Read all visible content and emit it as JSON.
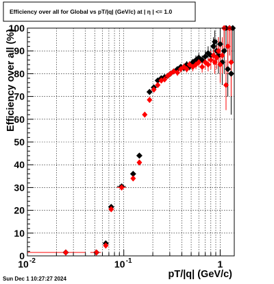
{
  "chart_data": {
    "type": "scatter",
    "title": "Efficiency over all for Global vs pT/|q| (GeV/c) at |  η  | <= 1.0",
    "xlabel": "pT/|q| (GeV/c)",
    "ylabel": "Efficiency over all (%)",
    "x_scale": "log",
    "xlim": [
      0.01,
      1.4
    ],
    "ylim": [
      0,
      100
    ],
    "x_major_ticks": [
      0.01,
      0.1,
      1
    ],
    "x_major_tick_labels": [
      "10",
      "10",
      "1"
    ],
    "x_major_tick_exponents": [
      "-2",
      "-1",
      ""
    ],
    "y_ticks": [
      0,
      10,
      20,
      30,
      40,
      50,
      60,
      70,
      80,
      90,
      100
    ],
    "y_tick_labels": [
      "0",
      "10",
      "20",
      "30",
      "40",
      "50",
      "60",
      "70",
      "80",
      "90",
      "100"
    ],
    "grid": true,
    "timestamp": "Sun Dec  1 10:27:27 2024",
    "series": [
      {
        "color": "#000000",
        "marker": "diamond",
        "points": [
          {
            "x": 0.025,
            "y": 1.5,
            "xlo": 0.01,
            "xhi": 0.04,
            "ylo": 1.5,
            "yhi": 1.5
          },
          {
            "x": 0.052,
            "y": 1.5,
            "xlo": 0.045,
            "xhi": 0.058,
            "ylo": 1.5,
            "yhi": 1.5
          },
          {
            "x": 0.065,
            "y": 5.5,
            "xlo": 0.062,
            "xhi": 0.068,
            "ylo": 4.5,
            "yhi": 6.5
          },
          {
            "x": 0.074,
            "y": 21.5,
            "xlo": 0.071,
            "xhi": 0.077,
            "ylo": 20.5,
            "yhi": 22.5
          },
          {
            "x": 0.095,
            "y": 30.5,
            "xlo": 0.085,
            "xhi": 0.105,
            "ylo": 29.5,
            "yhi": 31.5
          },
          {
            "x": 0.125,
            "y": 36,
            "xlo": 0.118,
            "xhi": 0.132,
            "ylo": 35,
            "yhi": 37
          },
          {
            "x": 0.145,
            "y": 44,
            "xlo": 0.141,
            "xhi": 0.149,
            "ylo": 43,
            "yhi": 45
          },
          {
            "x": 0.185,
            "y": 72,
            "xlo": 0.18,
            "xhi": 0.19,
            "ylo": 71,
            "yhi": 73
          },
          {
            "x": 0.205,
            "y": 74,
            "xlo": 0.2,
            "xhi": 0.21,
            "ylo": 73,
            "yhi": 75
          },
          {
            "x": 0.225,
            "y": 77,
            "xlo": 0.22,
            "xhi": 0.23,
            "ylo": 76,
            "yhi": 78
          },
          {
            "x": 0.245,
            "y": 78,
            "xlo": 0.24,
            "xhi": 0.25,
            "ylo": 77,
            "yhi": 79
          },
          {
            "x": 0.265,
            "y": 78.5,
            "xlo": 0.26,
            "xhi": 0.27,
            "ylo": 77.5,
            "yhi": 79.5
          },
          {
            "x": 0.285,
            "y": 79,
            "xlo": 0.28,
            "xhi": 0.29,
            "ylo": 78,
            "yhi": 80
          },
          {
            "x": 0.305,
            "y": 80,
            "xlo": 0.3,
            "xhi": 0.31,
            "ylo": 79,
            "yhi": 81
          },
          {
            "x": 0.33,
            "y": 81,
            "xlo": 0.32,
            "xhi": 0.34,
            "ylo": 80,
            "yhi": 82
          },
          {
            "x": 0.36,
            "y": 82,
            "xlo": 0.35,
            "xhi": 0.37,
            "ylo": 81,
            "yhi": 83
          },
          {
            "x": 0.39,
            "y": 83,
            "xlo": 0.38,
            "xhi": 0.4,
            "ylo": 82,
            "yhi": 84
          },
          {
            "x": 0.42,
            "y": 82.5,
            "xlo": 0.41,
            "xhi": 0.43,
            "ylo": 81,
            "yhi": 84
          },
          {
            "x": 0.45,
            "y": 84,
            "xlo": 0.44,
            "xhi": 0.46,
            "ylo": 82.5,
            "yhi": 85.5
          },
          {
            "x": 0.48,
            "y": 83,
            "xlo": 0.47,
            "xhi": 0.49,
            "ylo": 81.5,
            "yhi": 84.5
          },
          {
            "x": 0.52,
            "y": 85,
            "xlo": 0.5,
            "xhi": 0.54,
            "ylo": 83.5,
            "yhi": 86.5
          },
          {
            "x": 0.56,
            "y": 86,
            "xlo": 0.54,
            "xhi": 0.58,
            "ylo": 84,
            "yhi": 88
          },
          {
            "x": 0.6,
            "y": 87,
            "xlo": 0.58,
            "xhi": 0.62,
            "ylo": 85,
            "yhi": 89
          },
          {
            "x": 0.65,
            "y": 86,
            "xlo": 0.63,
            "xhi": 0.67,
            "ylo": 84,
            "yhi": 88
          },
          {
            "x": 0.7,
            "y": 87.5,
            "xlo": 0.68,
            "xhi": 0.72,
            "ylo": 85,
            "yhi": 90
          },
          {
            "x": 0.75,
            "y": 89,
            "xlo": 0.73,
            "xhi": 0.77,
            "ylo": 86,
            "yhi": 92
          },
          {
            "x": 0.8,
            "y": 88,
            "xlo": 0.78,
            "xhi": 0.82,
            "ylo": 85,
            "yhi": 91
          },
          {
            "x": 0.85,
            "y": 92,
            "xlo": 0.83,
            "xhi": 0.87,
            "ylo": 88,
            "yhi": 96
          },
          {
            "x": 0.88,
            "y": 94,
            "xlo": 0.87,
            "xhi": 0.89,
            "ylo": 89,
            "yhi": 99
          },
          {
            "x": 0.92,
            "y": 90,
            "xlo": 0.9,
            "xhi": 0.94,
            "ylo": 85,
            "yhi": 95
          },
          {
            "x": 0.96,
            "y": 88,
            "xlo": 0.94,
            "xhi": 0.98,
            "ylo": 80,
            "yhi": 96
          },
          {
            "x": 1.0,
            "y": 93,
            "xlo": 0.98,
            "xhi": 1.02,
            "ylo": 85,
            "yhi": 100
          },
          {
            "x": 1.05,
            "y": 85,
            "xlo": 1.03,
            "xhi": 1.07,
            "ylo": 75,
            "yhi": 95
          },
          {
            "x": 1.1,
            "y": 90,
            "xlo": 1.08,
            "xhi": 1.12,
            "ylo": 80,
            "yhi": 100
          },
          {
            "x": 1.15,
            "y": 100,
            "xlo": 1.13,
            "xhi": 1.17,
            "ylo": 90,
            "yhi": 100
          },
          {
            "x": 1.2,
            "y": 82,
            "xlo": 1.18,
            "xhi": 1.22,
            "ylo": 70,
            "yhi": 94
          },
          {
            "x": 1.25,
            "y": 100,
            "xlo": 1.23,
            "xhi": 1.27,
            "ylo": 88,
            "yhi": 100
          },
          {
            "x": 1.3,
            "y": 80,
            "xlo": 1.28,
            "xhi": 1.32,
            "ylo": 62,
            "yhi": 98
          },
          {
            "x": 1.35,
            "y": 100,
            "xlo": 1.33,
            "xhi": 1.37,
            "ylo": 85,
            "yhi": 100
          }
        ]
      },
      {
        "color": "#ff0000",
        "marker": "circle",
        "points": [
          {
            "x": 0.025,
            "y": 1.5,
            "xlo": 0.01,
            "xhi": 0.04,
            "ylo": 1.5,
            "yhi": 1.5
          },
          {
            "x": 0.052,
            "y": 1.5,
            "xlo": 0.045,
            "xhi": 0.058,
            "ylo": 1.5,
            "yhi": 1.5
          },
          {
            "x": 0.065,
            "y": 4.5,
            "xlo": 0.062,
            "xhi": 0.068,
            "ylo": 3.5,
            "yhi": 5.5
          },
          {
            "x": 0.074,
            "y": 20.5,
            "xlo": 0.071,
            "xhi": 0.077,
            "ylo": 19.5,
            "yhi": 21.5
          },
          {
            "x": 0.095,
            "y": 30,
            "xlo": 0.085,
            "xhi": 0.105,
            "ylo": 29,
            "yhi": 31
          },
          {
            "x": 0.125,
            "y": 34,
            "xlo": 0.118,
            "xhi": 0.132,
            "ylo": 33,
            "yhi": 35
          },
          {
            "x": 0.145,
            "y": 41,
            "xlo": 0.141,
            "xhi": 0.149,
            "ylo": 40,
            "yhi": 42
          },
          {
            "x": 0.165,
            "y": 62,
            "xlo": 0.16,
            "xhi": 0.17,
            "ylo": 61,
            "yhi": 63
          },
          {
            "x": 0.185,
            "y": 68.5,
            "xlo": 0.18,
            "xhi": 0.19,
            "ylo": 67.5,
            "yhi": 69.5
          },
          {
            "x": 0.205,
            "y": 73,
            "xlo": 0.2,
            "xhi": 0.21,
            "ylo": 72,
            "yhi": 74
          },
          {
            "x": 0.225,
            "y": 75,
            "xlo": 0.22,
            "xhi": 0.23,
            "ylo": 74,
            "yhi": 76
          },
          {
            "x": 0.245,
            "y": 77,
            "xlo": 0.24,
            "xhi": 0.25,
            "ylo": 76,
            "yhi": 78
          },
          {
            "x": 0.265,
            "y": 77.5,
            "xlo": 0.26,
            "xhi": 0.27,
            "ylo": 76.5,
            "yhi": 78.5
          },
          {
            "x": 0.285,
            "y": 79,
            "xlo": 0.28,
            "xhi": 0.29,
            "ylo": 78,
            "yhi": 80
          },
          {
            "x": 0.305,
            "y": 80,
            "xlo": 0.3,
            "xhi": 0.31,
            "ylo": 79,
            "yhi": 81
          },
          {
            "x": 0.33,
            "y": 81,
            "xlo": 0.32,
            "xhi": 0.34,
            "ylo": 80,
            "yhi": 82
          },
          {
            "x": 0.36,
            "y": 80.5,
            "xlo": 0.35,
            "xhi": 0.37,
            "ylo": 79,
            "yhi": 82
          },
          {
            "x": 0.39,
            "y": 82,
            "xlo": 0.38,
            "xhi": 0.4,
            "ylo": 80.5,
            "yhi": 83.5
          },
          {
            "x": 0.42,
            "y": 83,
            "xlo": 0.41,
            "xhi": 0.43,
            "ylo": 81.5,
            "yhi": 84.5
          },
          {
            "x": 0.45,
            "y": 82,
            "xlo": 0.44,
            "xhi": 0.46,
            "ylo": 80.5,
            "yhi": 83.5
          },
          {
            "x": 0.48,
            "y": 84,
            "xlo": 0.47,
            "xhi": 0.49,
            "ylo": 82.5,
            "yhi": 85.5
          },
          {
            "x": 0.52,
            "y": 83,
            "xlo": 0.5,
            "xhi": 0.54,
            "ylo": 81,
            "yhi": 85
          },
          {
            "x": 0.56,
            "y": 84,
            "xlo": 0.54,
            "xhi": 0.58,
            "ylo": 82,
            "yhi": 86
          },
          {
            "x": 0.6,
            "y": 85,
            "xlo": 0.58,
            "xhi": 0.62,
            "ylo": 83,
            "yhi": 87
          },
          {
            "x": 0.65,
            "y": 83,
            "xlo": 0.63,
            "xhi": 0.67,
            "ylo": 80.5,
            "yhi": 85.5
          },
          {
            "x": 0.7,
            "y": 85,
            "xlo": 0.68,
            "xhi": 0.72,
            "ylo": 82,
            "yhi": 88
          },
          {
            "x": 0.75,
            "y": 84,
            "xlo": 0.73,
            "xhi": 0.77,
            "ylo": 81,
            "yhi": 87
          },
          {
            "x": 0.8,
            "y": 86,
            "xlo": 0.78,
            "xhi": 0.82,
            "ylo": 82,
            "yhi": 90
          },
          {
            "x": 0.85,
            "y": 88,
            "xlo": 0.83,
            "xhi": 0.87,
            "ylo": 84,
            "yhi": 92
          },
          {
            "x": 0.88,
            "y": 85,
            "xlo": 0.87,
            "xhi": 0.89,
            "ylo": 80,
            "yhi": 90
          },
          {
            "x": 0.92,
            "y": 87,
            "xlo": 0.9,
            "xhi": 0.94,
            "ylo": 82,
            "yhi": 92
          },
          {
            "x": 0.96,
            "y": 90,
            "xlo": 0.94,
            "xhi": 0.98,
            "ylo": 84,
            "yhi": 96
          },
          {
            "x": 1.0,
            "y": 84,
            "xlo": 0.98,
            "xhi": 1.02,
            "ylo": 76,
            "yhi": 92
          },
          {
            "x": 1.05,
            "y": 88,
            "xlo": 1.03,
            "xhi": 1.07,
            "ylo": 80,
            "yhi": 96
          },
          {
            "x": 1.1,
            "y": 100,
            "xlo": 1.08,
            "xhi": 1.12,
            "ylo": 90,
            "yhi": 100
          },
          {
            "x": 1.15,
            "y": 75,
            "xlo": 1.13,
            "xhi": 1.17,
            "ylo": 64,
            "yhi": 86
          },
          {
            "x": 1.2,
            "y": 92,
            "xlo": 1.18,
            "xhi": 1.22,
            "ylo": 80,
            "yhi": 100
          },
          {
            "x": 1.25,
            "y": 100,
            "xlo": 1.23,
            "xhi": 1.27,
            "ylo": 88,
            "yhi": 100
          },
          {
            "x": 1.3,
            "y": 85,
            "xlo": 1.28,
            "xhi": 1.32,
            "ylo": 70,
            "yhi": 100
          }
        ]
      }
    ]
  }
}
